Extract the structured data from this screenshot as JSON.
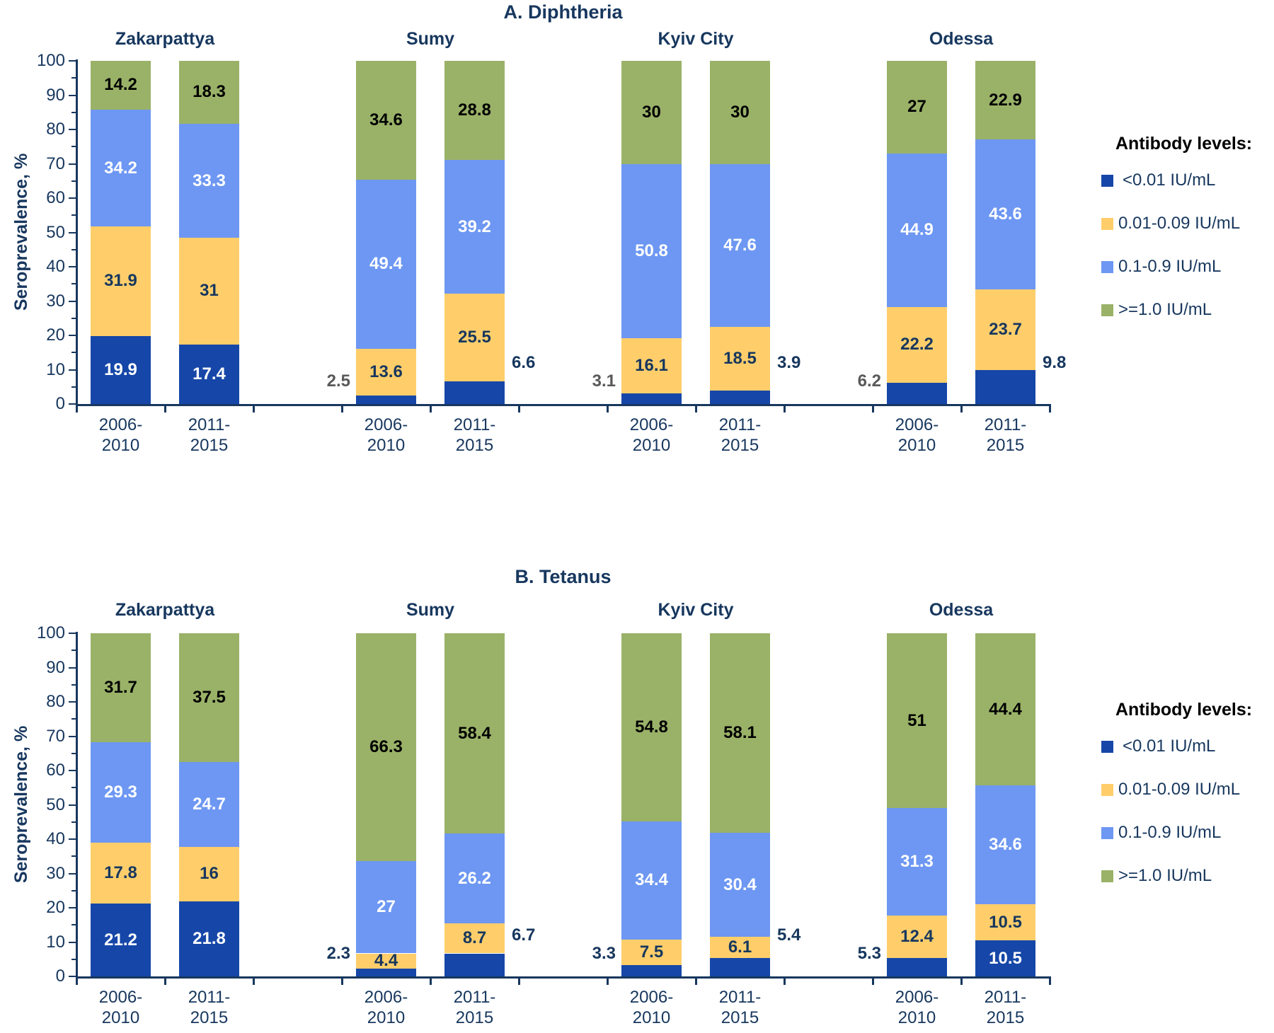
{
  "colors": {
    "navy_text": "#17375E",
    "axis": "#17375E",
    "gray_outside_label": "#595959",
    "background": "#FFFFFF",
    "legend_title_color": "#000000"
  },
  "chart_data": [
    {
      "type": "stacked-bar",
      "title": "A. Diphtheria",
      "ylabel": "Seroprevalence, %",
      "y_axis": {
        "min": 0,
        "max": 100,
        "major_step": 10,
        "minor_step": 5,
        "unit": "%"
      },
      "legend_position": "right",
      "legend_title": "Antibody levels:",
      "series": [
        {
          "name": "<0.01 IU/mL",
          "color": "#1647A8",
          "label_color": "#FFFFFF"
        },
        {
          "name": "0.01-0.09 IU/mL",
          "color": "#FFCE6B",
          "label_color": "#17375E"
        },
        {
          "name": "0.1-0.9 IU/mL",
          "color": "#6D97F2",
          "label_color": "#FFFFFF"
        },
        {
          "name": ">=1.0 IU/mL",
          "color": "#9AB268",
          "label_color": "#000000"
        }
      ],
      "groups": [
        {
          "region": "Zakarpattya",
          "bars": [
            {
              "period": [
                "2006-",
                "2010"
              ],
              "values": [
                19.9,
                31.9,
                34.2,
                14.2
              ],
              "outside_label": null
            },
            {
              "period": [
                "2011-",
                "2015"
              ],
              "values": [
                17.4,
                31,
                33.3,
                18.3
              ],
              "outside_label": null
            }
          ]
        },
        {
          "region": "Sumy",
          "bars": [
            {
              "period": [
                "2006-",
                "2010"
              ],
              "values": [
                2.5,
                13.6,
                49.4,
                34.6
              ],
              "outside_label": {
                "side": "left",
                "color": "#595959"
              }
            },
            {
              "period": [
                "2011-",
                "2015"
              ],
              "values": [
                6.6,
                25.5,
                39.2,
                28.8
              ],
              "outside_label": {
                "side": "right",
                "color": "#17375E"
              }
            }
          ]
        },
        {
          "region": "Kyiv City",
          "bars": [
            {
              "period": [
                "2006-",
                "2010"
              ],
              "values": [
                3.1,
                16.1,
                50.8,
                30
              ],
              "outside_label": {
                "side": "left",
                "color": "#595959"
              }
            },
            {
              "period": [
                "2011-",
                "2015"
              ],
              "values": [
                3.9,
                18.5,
                47.6,
                30
              ],
              "outside_label": {
                "side": "right",
                "color": "#17375E"
              }
            }
          ]
        },
        {
          "region": "Odessa",
          "bars": [
            {
              "period": [
                "2006-",
                "2010"
              ],
              "values": [
                6.2,
                22.2,
                44.9,
                27
              ],
              "outside_label": {
                "side": "left",
                "color": "#595959"
              }
            },
            {
              "period": [
                "2011-",
                "2015"
              ],
              "values": [
                9.8,
                23.7,
                43.6,
                22.9
              ],
              "outside_label": {
                "side": "right",
                "color": "#17375E"
              }
            }
          ]
        }
      ]
    },
    {
      "type": "stacked-bar",
      "title": "B. Tetanus",
      "ylabel": "Seroprevalence, %",
      "y_axis": {
        "min": 0,
        "max": 100,
        "major_step": 10,
        "minor_step": 5,
        "unit": "%"
      },
      "legend_position": "right",
      "legend_title": "Antibody levels:",
      "series": [
        {
          "name": "<0.01 IU/mL",
          "color": "#1647A8",
          "label_color": "#FFFFFF"
        },
        {
          "name": "0.01-0.09 IU/mL",
          "color": "#FFCE6B",
          "label_color": "#17375E"
        },
        {
          "name": "0.1-0.9 IU/mL",
          "color": "#6D97F2",
          "label_color": "#FFFFFF"
        },
        {
          "name": ">=1.0 IU/mL",
          "color": "#9AB268",
          "label_color": "#000000"
        }
      ],
      "groups": [
        {
          "region": "Zakarpattya",
          "bars": [
            {
              "period": [
                "2006-",
                "2010"
              ],
              "values": [
                21.2,
                17.8,
                29.3,
                31.7
              ],
              "outside_label": null
            },
            {
              "period": [
                "2011-",
                "2015"
              ],
              "values": [
                21.8,
                16,
                24.7,
                37.5
              ],
              "outside_label": null
            }
          ]
        },
        {
          "region": "Sumy",
          "bars": [
            {
              "period": [
                "2006-",
                "2010"
              ],
              "values": [
                2.3,
                4.4,
                27,
                66.3
              ],
              "outside_label": {
                "side": "left",
                "color": "#17375E"
              }
            },
            {
              "period": [
                "2011-",
                "2015"
              ],
              "values": [
                6.7,
                8.7,
                26.2,
                58.4
              ],
              "outside_label": {
                "side": "right",
                "color": "#17375E"
              }
            }
          ]
        },
        {
          "region": "Kyiv City",
          "bars": [
            {
              "period": [
                "2006-",
                "2010"
              ],
              "values": [
                3.3,
                7.5,
                34.4,
                54.8
              ],
              "outside_label": {
                "side": "left",
                "color": "#17375E"
              }
            },
            {
              "period": [
                "2011-",
                "2015"
              ],
              "values": [
                5.4,
                6.1,
                30.4,
                58.1
              ],
              "outside_label": {
                "side": "right",
                "color": "#17375E"
              }
            }
          ]
        },
        {
          "region": "Odessa",
          "bars": [
            {
              "period": [
                "2006-",
                "2010"
              ],
              "values": [
                5.3,
                12.4,
                31.3,
                51
              ],
              "outside_label": {
                "side": "left",
                "color": "#17375E"
              }
            },
            {
              "period": [
                "2011-",
                "2015"
              ],
              "values": [
                10.5,
                10.5,
                34.6,
                44.4
              ],
              "outside_label": null
            }
          ]
        }
      ]
    }
  ]
}
